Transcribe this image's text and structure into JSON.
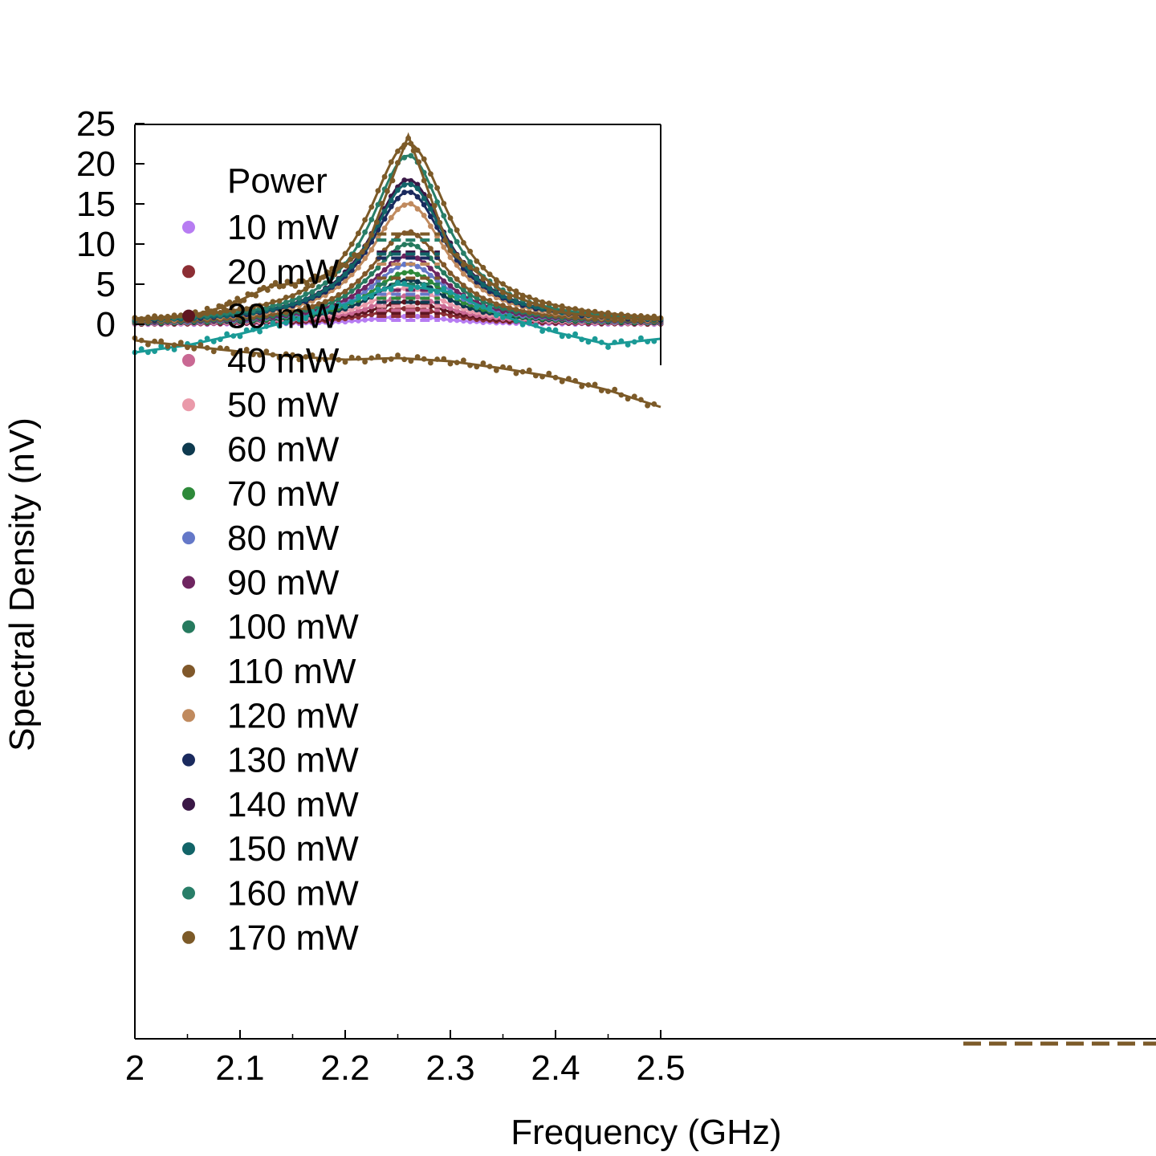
{
  "chart_data": {
    "type": "scatter",
    "title": "",
    "xlabel": "Frequency (GHz)",
    "ylabel": "Spectral Density (nV)",
    "xlim": [
      2.0,
      2.5
    ],
    "ylim": [
      -89,
      25
    ],
    "x_ticks": [
      "2",
      "2.1",
      "2.2",
      "2.3",
      "2.4",
      "2.5"
    ],
    "y_ticks": [
      "0",
      "5",
      "10",
      "15",
      "20",
      "25"
    ],
    "legend": {
      "title": "Power",
      "placement": "top-left"
    },
    "peak_center_ghz": 2.26,
    "series": [
      {
        "name": "10 mW",
        "color": "#b77cf2",
        "peak": 1.0,
        "width": 0.045,
        "base": 0.0
      },
      {
        "name": "20 mW",
        "color": "#8c2e34",
        "peak": 2.0,
        "width": 0.045,
        "base": 0.0
      },
      {
        "name": "30 mW",
        "color": "#5e1520",
        "peak": 2.8,
        "width": 0.045,
        "base": 0.0
      },
      {
        "name": "40 mW",
        "color": "#c96893",
        "peak": 3.5,
        "width": 0.045,
        "base": 0.0
      },
      {
        "name": "50 mW",
        "color": "#ea9aaa",
        "peak": 4.5,
        "width": 0.045,
        "base": 0.0
      },
      {
        "name": "60 mW",
        "color": "#0e3a4f",
        "peak": 5.5,
        "width": 0.045,
        "base": 0.0
      },
      {
        "name": "70 mW",
        "color": "#2e8a3a",
        "peak": 6.5,
        "width": 0.045,
        "base": 0.0
      },
      {
        "name": "80 mW",
        "color": "#6478c8",
        "peak": 7.5,
        "width": 0.045,
        "base": 0.0
      },
      {
        "name": "90 mW",
        "color": "#6e2560",
        "peak": 8.5,
        "width": 0.045,
        "base": 0.0
      },
      {
        "name": "100 mW",
        "color": "#267a5e",
        "peak": 10.0,
        "width": 0.045,
        "base": 0.0
      },
      {
        "name": "110 mW",
        "color": "#80582a",
        "peak": 11.5,
        "width": 0.045,
        "base": 0.0
      },
      {
        "name": "120 mW",
        "color": "#c08a5e",
        "peak": 15.0,
        "width": 0.045,
        "base": 0.0
      },
      {
        "name": "130 mW",
        "color": "#1a2a5e",
        "peak": 16.5,
        "width": 0.045,
        "base": 0.0
      },
      {
        "name": "140 mW",
        "color": "#3a1846",
        "peak": 18.0,
        "width": 0.045,
        "base": 0.0
      },
      {
        "name": "150 mW",
        "color": "#126468",
        "peak": 17.5,
        "width": 0.045,
        "base": 0.0
      },
      {
        "name": "160 mW",
        "color": "#287e68",
        "peak": 21.0,
        "width": 0.045,
        "base": 0.0
      },
      {
        "name": "170 mW",
        "color": "#7c5a28",
        "peak": 22.5,
        "width": 0.048,
        "base": 0.0
      }
    ],
    "extra_curves": [
      {
        "color": "#1a9a96",
        "points": [
          [
            2.0,
            -3.5
          ],
          [
            2.05,
            -2.6
          ],
          [
            2.1,
            -1.2
          ],
          [
            2.15,
            0.5
          ],
          [
            2.2,
            2.5
          ],
          [
            2.25,
            5.0
          ],
          [
            2.3,
            4.0
          ],
          [
            2.35,
            1.0
          ],
          [
            2.4,
            -1.0
          ],
          [
            2.45,
            -2.5
          ],
          [
            2.5,
            -1.8
          ]
        ]
      },
      {
        "color": "#7c5a28",
        "points": [
          [
            2.0,
            -2.0
          ],
          [
            2.05,
            -2.7
          ],
          [
            2.1,
            -3.4
          ],
          [
            2.15,
            -4.0
          ],
          [
            2.2,
            -4.4
          ],
          [
            2.25,
            -4.2
          ],
          [
            2.3,
            -4.6
          ],
          [
            2.35,
            -5.5
          ],
          [
            2.4,
            -6.6
          ],
          [
            2.45,
            -8.2
          ],
          [
            2.5,
            -10.3
          ]
        ]
      },
      {
        "color": "#7c5a28",
        "points": [
          [
            2.0,
            0.5
          ],
          [
            2.05,
            1.0
          ],
          [
            2.08,
            2.0
          ],
          [
            2.1,
            3.0
          ],
          [
            2.13,
            4.8
          ],
          [
            2.16,
            5.2
          ],
          [
            2.19,
            6.5
          ],
          [
            2.22,
            9.5
          ],
          [
            2.26,
            23.5
          ],
          [
            2.3,
            9.0
          ],
          [
            2.35,
            4.0
          ],
          [
            2.4,
            1.6
          ],
          [
            2.45,
            0.8
          ],
          [
            2.5,
            0.6
          ]
        ]
      }
    ]
  }
}
